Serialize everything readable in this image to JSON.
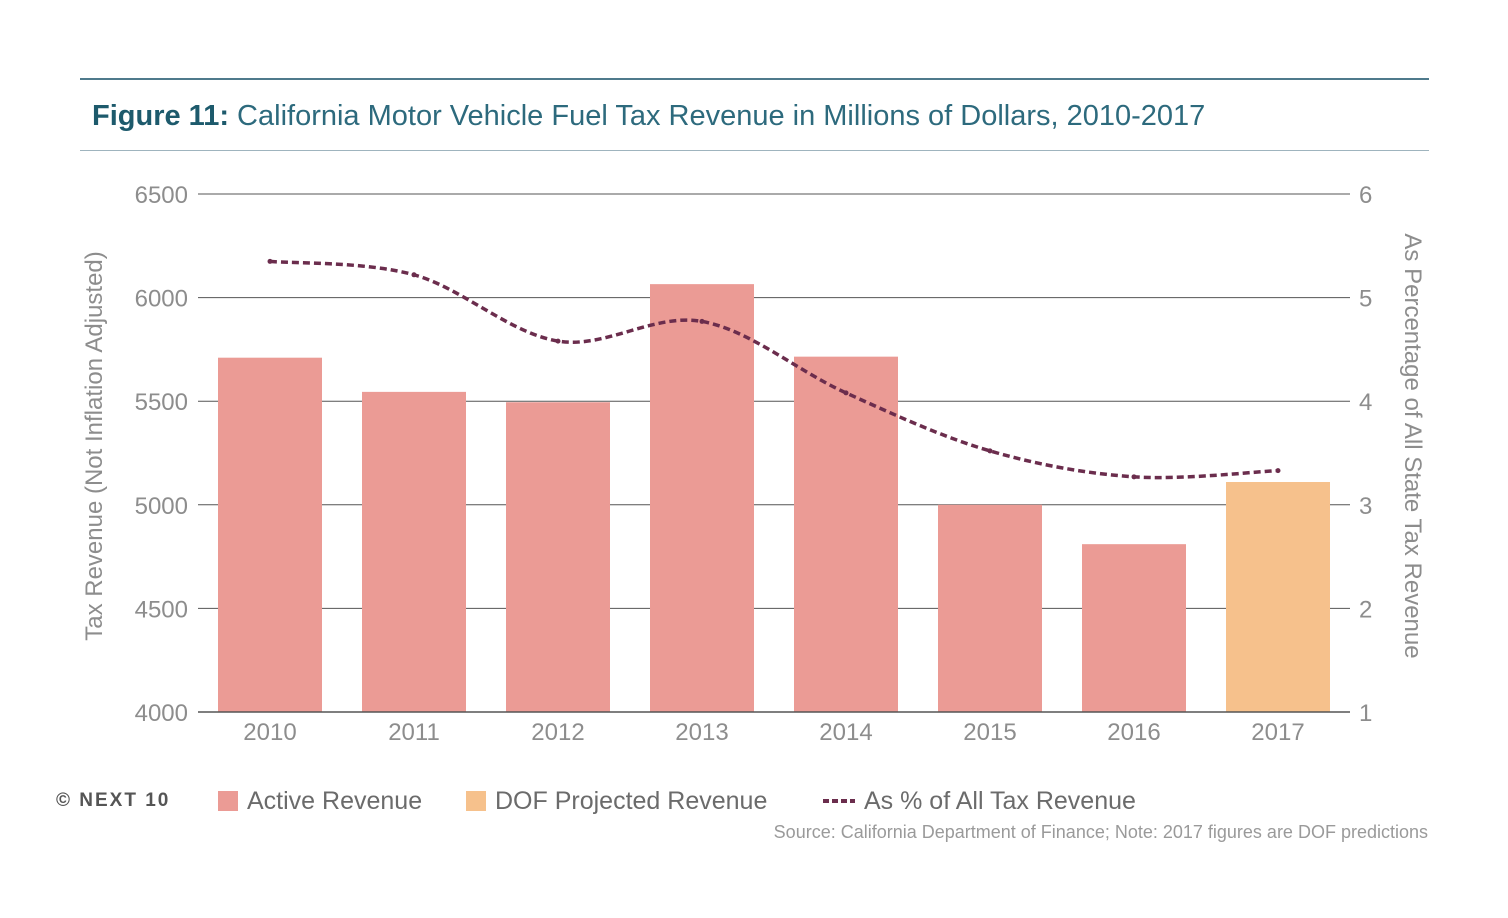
{
  "figure": {
    "title_lead": "Figure 11:",
    "title_rest": " California Motor Vehicle Fuel Tax Revenue in Millions of Dollars, 2010-2017"
  },
  "colors": {
    "active": "#eb9b95",
    "projected": "#f6c18c",
    "line": "#6b2d4d",
    "grid": "#555555",
    "tick": "#8d8d8d"
  },
  "chart_data": {
    "type": "bar",
    "title": "California Motor Vehicle Fuel Tax Revenue in Millions of Dollars, 2010-2017",
    "categories": [
      "2010",
      "2011",
      "2012",
      "2013",
      "2014",
      "2015",
      "2016",
      "2017"
    ],
    "ylabel": "Tax Revenue (Not Inflation Adjusted)",
    "y2label": "As Percentage of All State Tax Revenue",
    "ylim": [
      4000,
      6500
    ],
    "y2lim": [
      1,
      6
    ],
    "yticks": [
      "4000",
      "4500",
      "5000",
      "5500",
      "6000",
      "6500"
    ],
    "y2ticks": [
      "1",
      "2",
      "3",
      "4",
      "5",
      "6"
    ],
    "grid": true,
    "legend_position": "bottom",
    "series": [
      {
        "name": "Active Revenue",
        "type": "bar",
        "axis": "left",
        "values": [
          5710,
          5545,
          5495,
          6065,
          5715,
          5000,
          4810,
          null
        ]
      },
      {
        "name": "DOF Projected Revenue",
        "type": "bar",
        "axis": "left",
        "values": [
          null,
          null,
          null,
          null,
          null,
          null,
          null,
          5110
        ]
      },
      {
        "name": "As % of All Tax Revenue",
        "type": "line",
        "style": "dashed",
        "axis": "right",
        "values": [
          5.35,
          5.22,
          4.58,
          4.77,
          4.08,
          3.52,
          3.27,
          3.33
        ]
      }
    ]
  },
  "legend": {
    "copyright": "© NEXT 10",
    "items": [
      "Active Revenue",
      "DOF Projected Revenue",
      "As % of All Tax Revenue"
    ]
  },
  "source_note": "Source: California Department of Finance; Note: 2017 figures are DOF predictions"
}
